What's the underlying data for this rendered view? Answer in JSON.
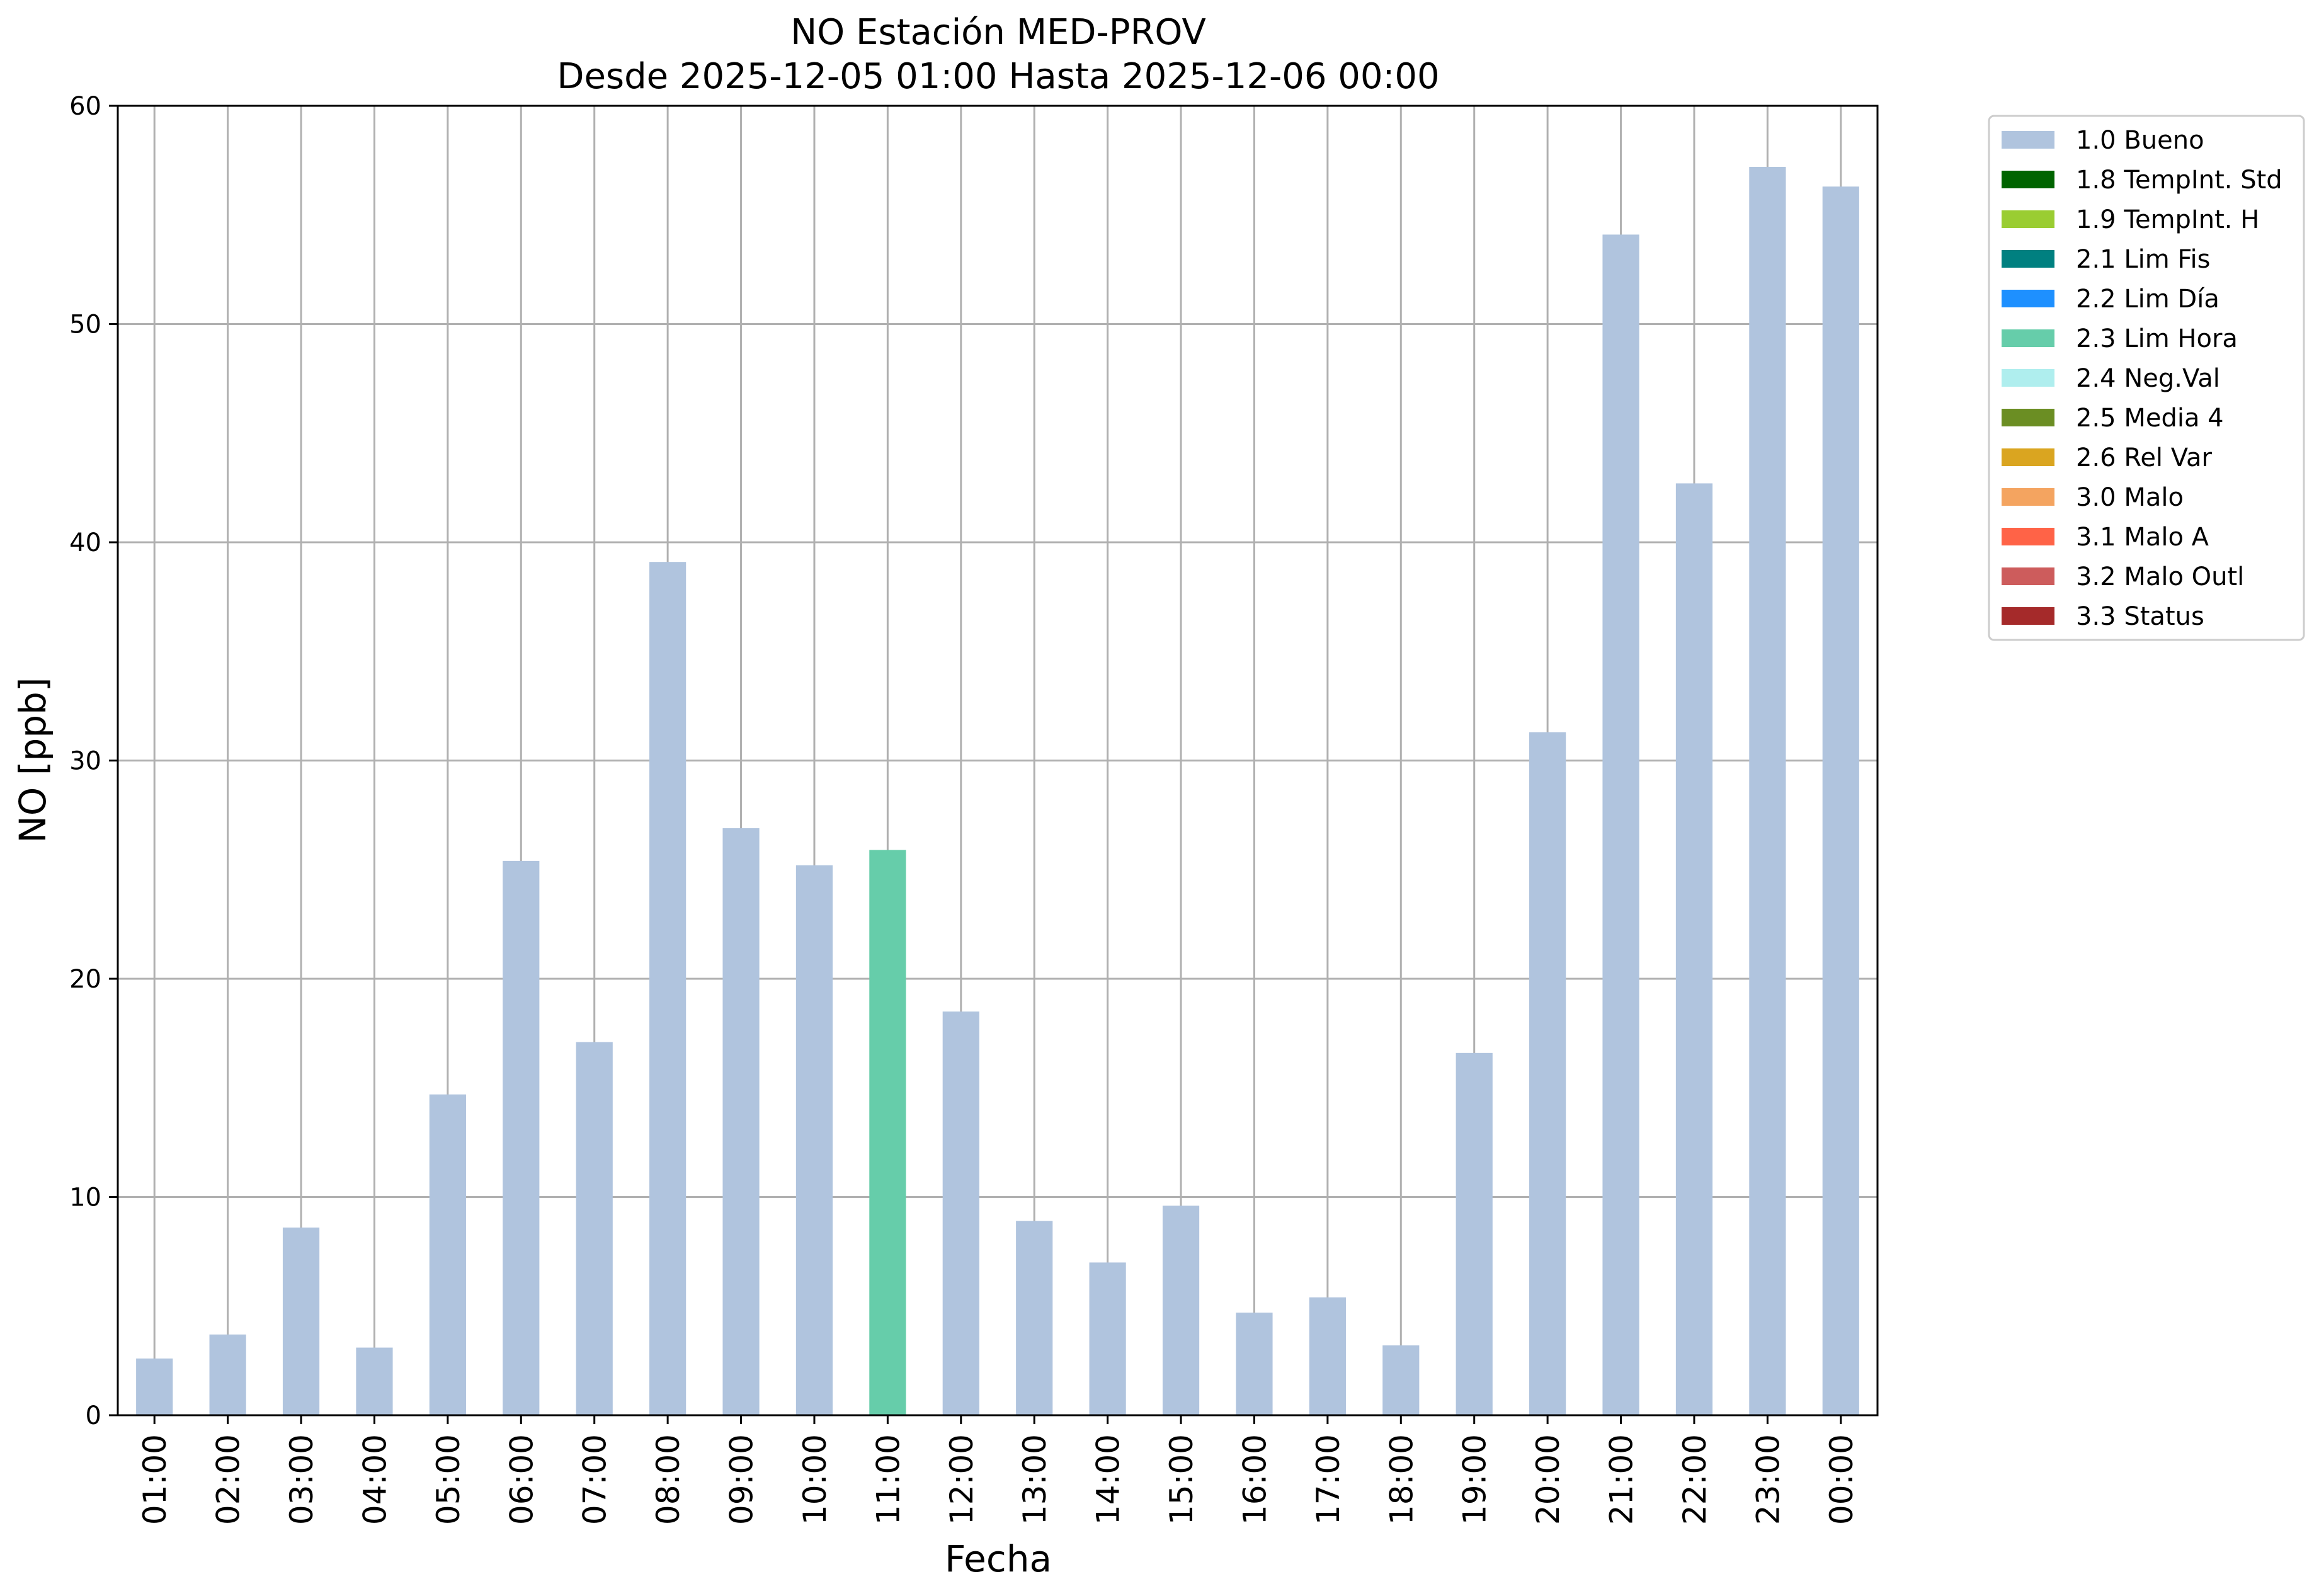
{
  "chart_data": {
    "type": "bar",
    "title_line1": "NO Estación MED-PROV",
    "title_line2": "Desde 2025-12-05 01:00 Hasta 2025-12-06 00:00",
    "xlabel": "Fecha",
    "ylabel": "NO [ppb]",
    "ylim": [
      0,
      60
    ],
    "yticks": [
      0,
      10,
      20,
      30,
      40,
      50,
      60
    ],
    "grid": true,
    "legend_position": "outside-top-right",
    "categories": [
      "01:00",
      "02:00",
      "03:00",
      "04:00",
      "05:00",
      "06:00",
      "07:00",
      "08:00",
      "09:00",
      "10:00",
      "11:00",
      "12:00",
      "13:00",
      "14:00",
      "15:00",
      "16:00",
      "17:00",
      "18:00",
      "19:00",
      "20:00",
      "21:00",
      "22:00",
      "23:00",
      "00:00"
    ],
    "values": [
      2.6,
      3.7,
      8.6,
      3.1,
      14.7,
      25.4,
      17.1,
      39.1,
      26.9,
      25.2,
      25.9,
      18.5,
      8.9,
      7.0,
      9.6,
      4.7,
      5.4,
      3.2,
      16.6,
      31.3,
      54.1,
      42.7,
      57.2,
      56.3
    ],
    "flags": [
      "1.0 Bueno",
      "1.0 Bueno",
      "1.0 Bueno",
      "1.0 Bueno",
      "1.0 Bueno",
      "1.0 Bueno",
      "1.0 Bueno",
      "1.0 Bueno",
      "1.0 Bueno",
      "1.0 Bueno",
      "2.3 Lim Hora",
      "1.0 Bueno",
      "1.0 Bueno",
      "1.0 Bueno",
      "1.0 Bueno",
      "1.0 Bueno",
      "1.0 Bueno",
      "1.0 Bueno",
      "1.0 Bueno",
      "1.0 Bueno",
      "1.0 Bueno",
      "1.0 Bueno",
      "1.0 Bueno",
      "1.0 Bueno"
    ],
    "legend": [
      {
        "label": "1.0 Bueno",
        "color": "#b0c4de"
      },
      {
        "label": "1.8 TempInt. Std",
        "color": "#006400"
      },
      {
        "label": "1.9 TempInt. H",
        "color": "#9acd32"
      },
      {
        "label": "2.1 Lim Fis",
        "color": "#008080"
      },
      {
        "label": "2.2 Lim Día",
        "color": "#1e90ff"
      },
      {
        "label": "2.3 Lim Hora",
        "color": "#66cdaa"
      },
      {
        "label": "2.4 Neg.Val",
        "color": "#afeeee"
      },
      {
        "label": "2.5 Media 4",
        "color": "#6b8e23"
      },
      {
        "label": "2.6 Rel Var",
        "color": "#daa520"
      },
      {
        "label": "3.0 Malo",
        "color": "#f4a460"
      },
      {
        "label": "3.1 Malo A",
        "color": "#ff6347"
      },
      {
        "label": "3.2 Malo Outl",
        "color": "#cd5c5c"
      },
      {
        "label": "3.3 Status",
        "color": "#a52a2a"
      }
    ]
  }
}
